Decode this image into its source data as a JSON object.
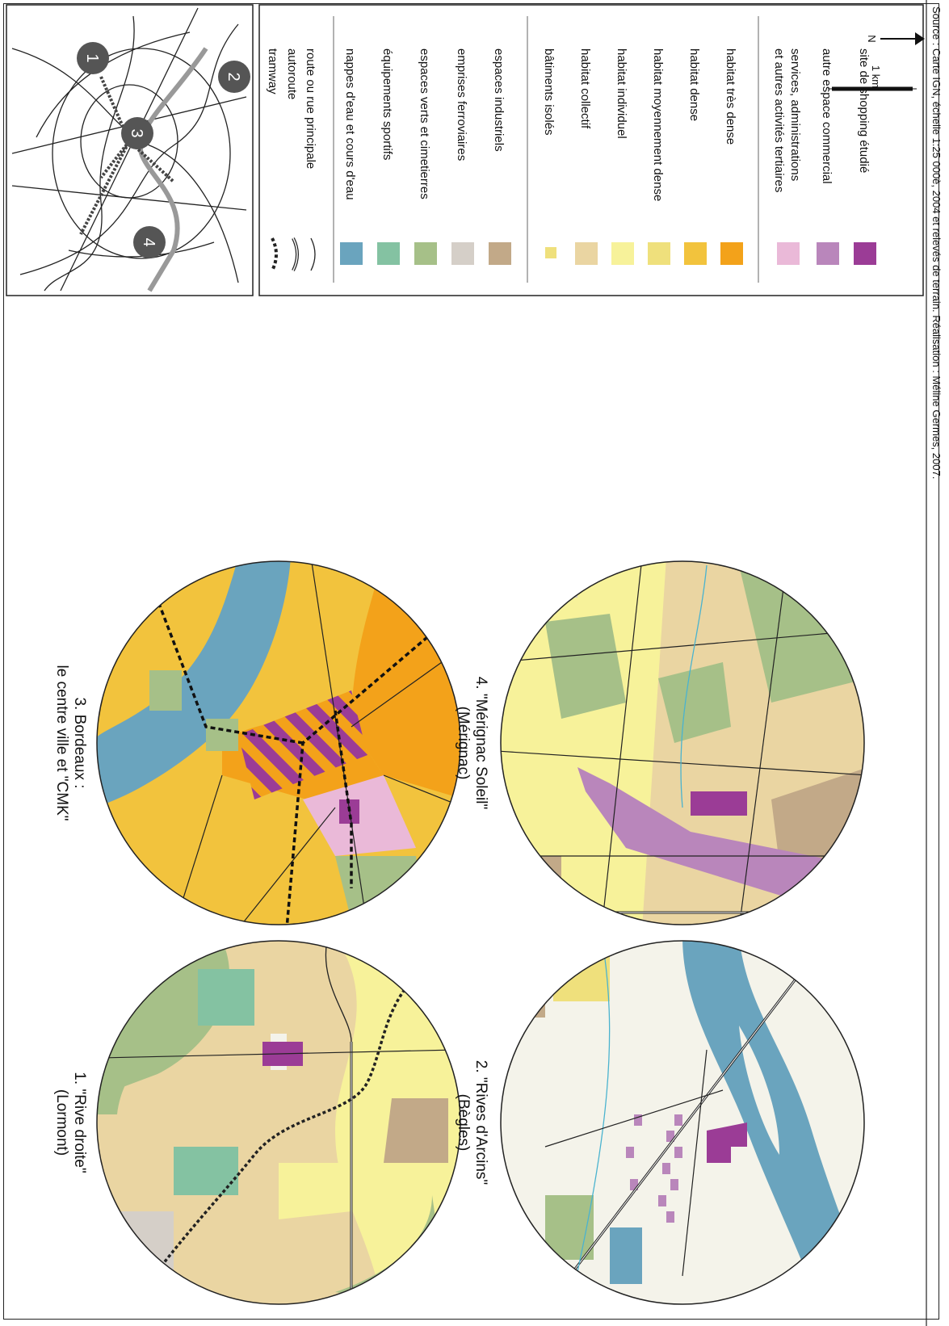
{
  "source": "Source : Carte IGN, échelle 1:25 000è, 2004  et relevés de terrain. Réalisation : Méline Germes, 2007.",
  "maps": [
    {
      "id": 1,
      "line1": "1. \"Rive droite\"",
      "line2": "(Lormont)"
    },
    {
      "id": 2,
      "line1": "2. \"Rives d'Arcins\"",
      "line2": "(Bègles)"
    },
    {
      "id": 3,
      "line1": "3. Bordeaux :",
      "line2": "le centre ville et \"CMK\""
    },
    {
      "id": 4,
      "line1": "4. \"Mérignac Soleil\"",
      "line2": "(Mérignac)"
    }
  ],
  "inset_markers": [
    "1",
    "2",
    "3",
    "4"
  ],
  "legend": {
    "group1": [
      {
        "label": "site de shopping étudié",
        "color": "#9b3c96"
      },
      {
        "label": "autre espace commercial",
        "color": "#b986bb"
      },
      {
        "label": "services, administrations",
        "label2": "et autres activités tertiaires",
        "color": "#eab9d8"
      }
    ],
    "group2": [
      {
        "label": "habitat très dense",
        "color": "#f3a21a"
      },
      {
        "label": "habitat dense",
        "color": "#f2c33d"
      },
      {
        "label": "habitat moyennement dense",
        "color": "#efe07c"
      },
      {
        "label": "habitat individuel",
        "color": "#f7f29a"
      },
      {
        "label": "habitat collectif",
        "color": "#ead5a2"
      },
      {
        "label": "bâtiments isolés",
        "color": "#efe07c"
      }
    ],
    "group3": [
      {
        "label": "espaces industriels",
        "color": "#c2a988"
      },
      {
        "label": "emprises ferroviaires",
        "color": "#d5cfc8"
      },
      {
        "label": "espaces verts et cimetierres",
        "color": "#a6c088"
      },
      {
        "label": "équipements sportifs",
        "color": "#84c2a2"
      },
      {
        "label": "nappes d'eau et cours d'eau",
        "color": "#6aa4be"
      }
    ],
    "group4": [
      {
        "label": "route ou rue principale"
      },
      {
        "label": "autoroute"
      },
      {
        "label": "tramway"
      }
    ],
    "scale_label": "1 km",
    "north_label": "N"
  },
  "colors": {
    "water": "#6aa4be",
    "bank": "#f4f2e8",
    "background": "#f4f3ea"
  }
}
